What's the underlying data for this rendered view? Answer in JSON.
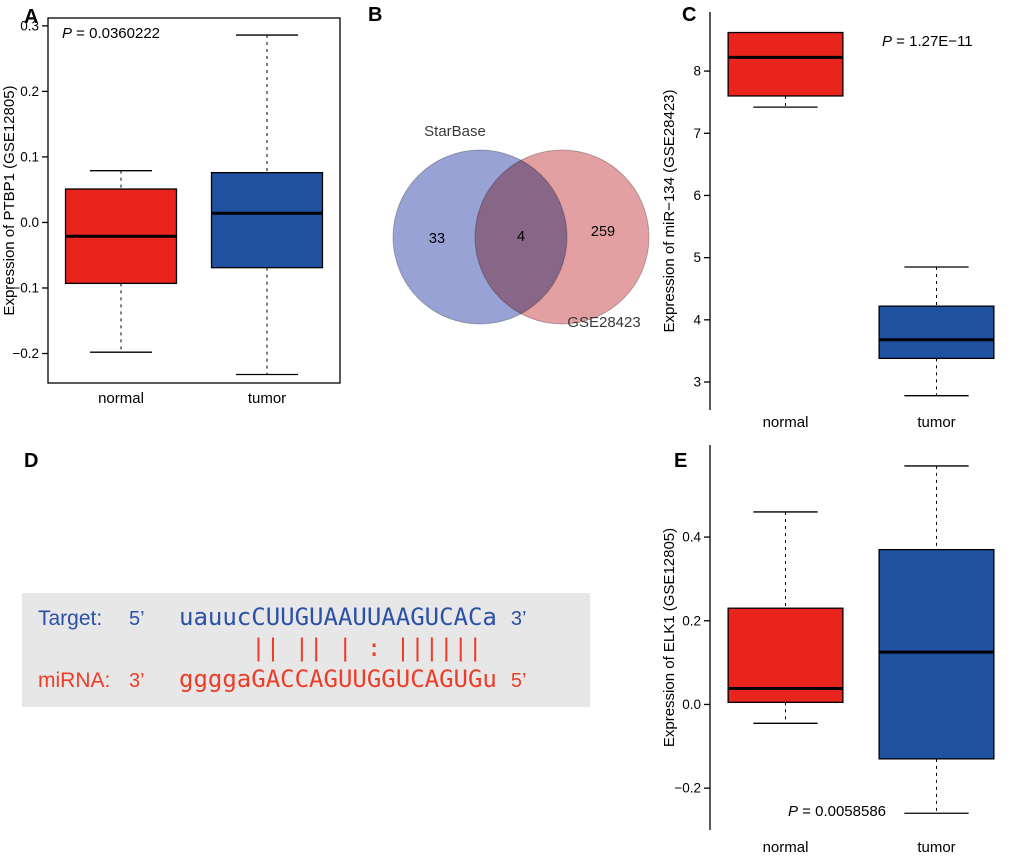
{
  "panel_labels": {
    "a": "A",
    "b": "B",
    "c": "C",
    "d": "D",
    "e": "E"
  },
  "colors": {
    "normal_box": "#e8241c",
    "tumor_box": "#2152a2",
    "venn_left_fill": "#99a2d4",
    "venn_right_fill": "#e2a0a2",
    "target_text": "#2b50a8",
    "mirna_text": "#ee3c28",
    "alignment_bg": "#e7e7e7"
  },
  "chart_data": [
    {
      "panel": "A",
      "type": "boxplot",
      "ylabel": "Expression of PTBP1 (GSE12805)",
      "annotation": "P = 0.0360222",
      "categories": [
        "normal",
        "tumor"
      ],
      "ylim": [
        -0.245,
        0.312
      ],
      "yticks": [
        {
          "v": 0.3,
          "label": "0.3"
        },
        {
          "v": 0.2,
          "label": "0.2"
        },
        {
          "v": 0.1,
          "label": "0.1"
        },
        {
          "v": 0.0,
          "label": "0.0"
        },
        {
          "v": -0.1,
          "label": "−0.1"
        },
        {
          "v": -0.2,
          "label": "−0.2"
        }
      ],
      "frame": "box",
      "series": [
        {
          "name": "normal",
          "color_key": "normal_box",
          "whisker_low": -0.198,
          "q1": -0.093,
          "median": -0.021,
          "q3": 0.051,
          "whisker_high": 0.079
        },
        {
          "name": "tumor",
          "color_key": "tumor_box",
          "whisker_low": -0.232,
          "q1": -0.069,
          "median": 0.014,
          "q3": 0.076,
          "whisker_high": 0.286
        }
      ]
    },
    {
      "panel": "B",
      "type": "venn",
      "sets": [
        {
          "label": "StarBase",
          "unique_count": 33
        },
        {
          "label": "GSE28423",
          "unique_count": 259
        }
      ],
      "overlap_count": 4
    },
    {
      "panel": "C",
      "type": "boxplot",
      "ylabel": "Expression of miR−134 (GSE28423)",
      "annotation": "P = 1.27E−11",
      "categories": [
        "normal",
        "tumor"
      ],
      "ylim": [
        2.55,
        8.95
      ],
      "yticks": [
        {
          "v": 8,
          "label": "8"
        },
        {
          "v": 7,
          "label": "7"
        },
        {
          "v": 6,
          "label": "6"
        },
        {
          "v": 5,
          "label": "5"
        },
        {
          "v": 4,
          "label": "4"
        },
        {
          "v": 3,
          "label": "3"
        }
      ],
      "frame": "axis",
      "series": [
        {
          "name": "normal",
          "color_key": "normal_box",
          "whisker_low": 7.42,
          "q1": 7.6,
          "median": 8.22,
          "q3": 8.62,
          "whisker_high": 8.62
        },
        {
          "name": "tumor",
          "color_key": "tumor_box",
          "whisker_low": 2.78,
          "q1": 3.38,
          "median": 3.68,
          "q3": 4.22,
          "whisker_high": 4.85
        }
      ]
    },
    {
      "panel": "E",
      "type": "boxplot",
      "ylabel": "Expression of ELK1 (GSE12805)",
      "annotation": "P = 0.0058586",
      "categories": [
        "normal",
        "tumor"
      ],
      "ylim": [
        -0.3,
        0.62
      ],
      "yticks": [
        {
          "v": 0.4,
          "label": "0.4"
        },
        {
          "v": 0.2,
          "label": "0.2"
        },
        {
          "v": 0.0,
          "label": "0.0"
        },
        {
          "v": -0.2,
          "label": "−0.2"
        }
      ],
      "frame": "axis",
      "series": [
        {
          "name": "normal",
          "color_key": "normal_box",
          "whisker_low": -0.045,
          "q1": 0.005,
          "median": 0.038,
          "q3": 0.23,
          "whisker_high": 0.46
        },
        {
          "name": "tumor",
          "color_key": "tumor_box",
          "whisker_low": -0.26,
          "q1": -0.13,
          "median": 0.125,
          "q3": 0.37,
          "whisker_high": 0.57
        }
      ]
    }
  ],
  "alignment": {
    "target": {
      "label": "Target:",
      "left_end": "5’",
      "sequence": "uauucCUUGUAAUUAAGUCACa",
      "right_end": "3’"
    },
    "pairing": "     || || | : |||||| ",
    "mirna": {
      "label": "miRNA:",
      "left_end": "3’",
      "sequence": "ggggaGACCAGUUGGUCAGUGu",
      "right_end": "5’"
    }
  }
}
